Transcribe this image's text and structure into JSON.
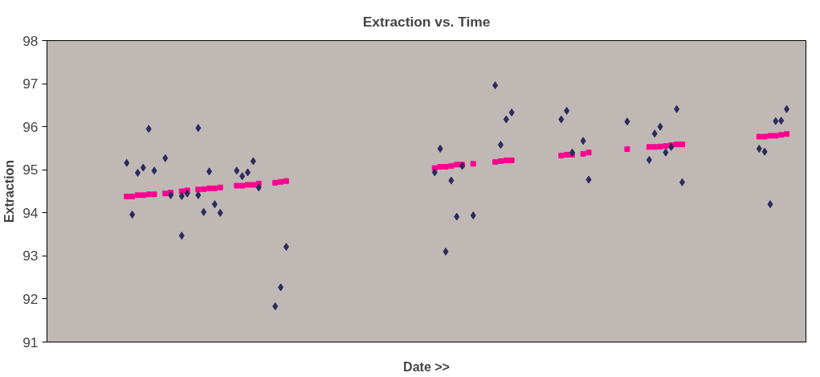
{
  "chart_data": {
    "type": "scatter",
    "title": "Extraction vs. Time",
    "xlabel": "Date >>",
    "ylabel": "Extraction",
    "ylim": [
      91,
      98
    ],
    "yticks": [
      91,
      92,
      93,
      94,
      95,
      96,
      97,
      98
    ],
    "grid": false,
    "categories": [
      null,
      null,
      null,
      null,
      null,
      null,
      null,
      null,
      null,
      null,
      null,
      null,
      null,
      null,
      null,
      null,
      null,
      null,
      null,
      null,
      null,
      null,
      null,
      null,
      null,
      null,
      null,
      null,
      null,
      null,
      null,
      null,
      null,
      null,
      null,
      null,
      null,
      null,
      null,
      null,
      null,
      null,
      null,
      null,
      null,
      null,
      null,
      null,
      null,
      null,
      null,
      null,
      null,
      null,
      null,
      null,
      null,
      null,
      null,
      null,
      null,
      null,
      null,
      null,
      null,
      null,
      null,
      null,
      null,
      null,
      null,
      null,
      null,
      null,
      null,
      null,
      null,
      null,
      null,
      null,
      null,
      null,
      null,
      null,
      null,
      null,
      null,
      null,
      null,
      null,
      null,
      null,
      null,
      null,
      null,
      null,
      null,
      null,
      null,
      null,
      null,
      null,
      null,
      null,
      null,
      null,
      null,
      null,
      null,
      null,
      null,
      null,
      null,
      null,
      null,
      null,
      null,
      null,
      null,
      null,
      null,
      null,
      null,
      null,
      null,
      null,
      null,
      null,
      null,
      null,
      null,
      null,
      null,
      null,
      null,
      null,
      null,
      null
    ],
    "series": [
      {
        "color": "#2b2b5c",
        "marker": "diamond",
        "values": [
          null,
          null,
          null,
          null,
          null,
          null,
          null,
          null,
          null,
          null,
          null,
          null,
          null,
          null,
          95.16,
          93.96,
          94.93,
          95.05,
          95.95,
          94.98,
          null,
          95.27,
          94.41,
          null,
          94.39,
          94.45,
          null,
          94.41,
          94.02,
          94.96,
          94.2,
          94.0,
          null,
          null,
          94.98,
          94.85,
          94.94,
          95.2,
          94.59,
          null,
          null,
          91.83,
          92.27,
          93.21,
          null,
          null,
          null,
          null,
          null,
          null,
          null,
          null,
          null,
          null,
          null,
          null,
          null,
          null,
          null,
          null,
          null,
          null,
          null,
          null,
          null,
          null,
          null,
          null,
          null,
          null,
          94.94,
          95.49,
          93.1,
          94.75,
          93.91,
          95.09,
          null,
          93.94,
          null,
          null,
          null,
          96.96,
          95.58,
          96.17,
          96.33,
          null,
          null,
          null,
          null,
          null,
          null,
          null,
          null,
          96.17,
          96.37,
          95.4,
          null,
          95.67,
          94.77,
          null,
          null,
          null,
          null,
          null,
          null,
          96.12,
          null,
          null,
          null,
          95.23,
          95.84,
          96.0,
          95.4,
          95.53,
          96.41,
          94.71,
          null,
          null,
          null,
          null,
          null,
          null,
          null,
          null,
          null,
          null,
          null,
          null,
          null,
          95.49,
          95.42,
          94.2,
          96.13,
          96.14,
          96.41,
          null,
          null,
          null
        ]
      },
      {
        "color": "#2b2b5c",
        "marker": "diamond",
        "values": [
          null,
          null,
          null,
          null,
          null,
          null,
          null,
          null,
          null,
          null,
          null,
          null,
          null,
          null,
          null,
          null,
          null,
          null,
          null,
          null,
          null,
          null,
          null,
          null,
          93.47,
          null,
          null,
          95.97,
          null,
          null,
          null,
          null,
          null,
          null,
          null,
          null,
          null,
          null,
          null,
          null,
          null,
          null,
          null,
          null,
          null,
          null,
          null,
          null,
          null,
          null,
          null,
          null,
          null,
          null,
          null,
          null,
          null,
          null,
          null,
          null,
          null,
          null,
          null,
          null,
          null,
          null,
          null,
          null,
          null,
          null,
          null,
          null,
          null,
          null,
          null,
          null,
          null,
          null,
          null,
          null,
          null,
          null,
          null,
          null,
          null,
          null,
          null,
          null,
          null,
          null,
          null,
          null,
          null,
          null,
          null,
          null,
          null,
          null,
          null,
          null,
          null,
          null,
          null,
          null,
          null,
          null,
          null,
          null,
          null,
          null,
          null,
          null,
          null,
          null,
          null,
          null,
          null,
          null,
          null,
          null,
          null,
          null,
          null,
          null,
          null,
          null,
          null,
          null,
          null,
          null,
          null,
          null,
          null,
          null,
          null,
          null,
          null,
          null
        ]
      },
      {
        "color": "#ff0090",
        "marker": "square",
        "values": [
          null,
          null,
          null,
          null,
          null,
          null,
          null,
          null,
          null,
          null,
          null,
          null,
          null,
          null,
          94.38,
          94.38,
          94.41,
          94.41,
          94.43,
          94.43,
          null,
          94.45,
          94.47,
          null,
          94.5,
          94.52,
          null,
          94.54,
          94.55,
          94.57,
          94.57,
          94.59,
          null,
          null,
          94.63,
          94.63,
          94.65,
          94.65,
          94.68,
          null,
          null,
          94.7,
          94.72,
          94.74,
          null,
          null,
          null,
          null,
          null,
          null,
          null,
          null,
          null,
          null,
          null,
          null,
          null,
          null,
          null,
          null,
          null,
          null,
          null,
          null,
          null,
          null,
          null,
          null,
          null,
          null,
          95.04,
          95.07,
          95.07,
          95.09,
          95.12,
          95.12,
          null,
          95.14,
          null,
          null,
          null,
          95.18,
          95.2,
          95.22,
          95.22,
          null,
          null,
          null,
          null,
          null,
          null,
          null,
          null,
          95.33,
          95.35,
          95.35,
          null,
          95.37,
          95.4,
          null,
          null,
          null,
          null,
          null,
          null,
          95.48,
          null,
          null,
          null,
          95.53,
          95.53,
          95.54,
          95.55,
          95.57,
          95.59,
          95.59,
          null,
          null,
          null,
          null,
          null,
          null,
          null,
          null,
          null,
          null,
          null,
          null,
          null,
          95.77,
          95.77,
          95.79,
          95.79,
          95.81,
          95.83,
          null,
          null,
          null
        ]
      }
    ]
  }
}
